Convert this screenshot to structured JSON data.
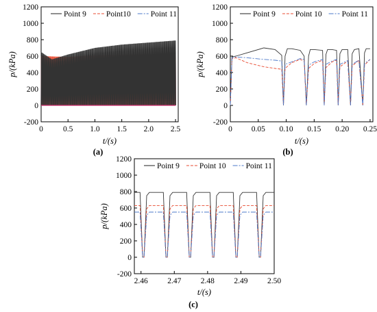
{
  "chart_data": [
    {
      "type": "line",
      "panel_label": "(a)",
      "xlabel": "t/(s)",
      "ylabel": "p/(kPa)",
      "xlim": [
        0,
        2.55
      ],
      "ylim": [
        -200,
        1200
      ],
      "xticks": [
        0,
        0.5,
        1.0,
        1.5,
        2.0,
        2.5
      ],
      "xtick_labels": [
        "0",
        "0.5",
        "1.0",
        "1.5",
        "2.0",
        "2.5"
      ],
      "yticks": [
        -200,
        0,
        200,
        400,
        600,
        800,
        1000,
        1200
      ],
      "ytick_labels": [
        "-200",
        "0",
        "200",
        "400",
        "600",
        "800",
        "1000",
        "1200"
      ],
      "legend": "top-right",
      "series": [
        {
          "name": "Point 9",
          "color": "#333333",
          "dash": "solid",
          "peak": [
            [
              0,
              650
            ],
            [
              0.2,
              560
            ],
            [
              0.5,
              620
            ],
            [
              1.0,
              700
            ],
            [
              1.5,
              740
            ],
            [
              2.0,
              765
            ],
            [
              2.5,
              790
            ]
          ],
          "low": 0
        },
        {
          "name": "Point10",
          "color": "#e8492f",
          "dash": "4,2",
          "peak": [
            [
              0,
              600
            ],
            [
              0.5,
              590
            ],
            [
              1.0,
              610
            ],
            [
              2.5,
              630
            ]
          ],
          "low": 0
        },
        {
          "name": "Point 11",
          "color": "#4a77c9",
          "dash": "7,2,2,2",
          "peak": [
            [
              0,
              560
            ],
            [
              0.5,
              540
            ],
            [
              1.0,
              550
            ],
            [
              2.5,
              555
            ]
          ],
          "low": 0
        }
      ]
    },
    {
      "type": "line",
      "panel_label": "(b)",
      "xlabel": "t/(s)",
      "ylabel": "p/(kPa)",
      "xlim": [
        0,
        0.255
      ],
      "ylim": [
        -200,
        1200
      ],
      "xticks": [
        0,
        0.05,
        0.1,
        0.15,
        0.2,
        0.25
      ],
      "xtick_labels": [
        "0",
        "0.05",
        "0.10",
        "0.15",
        "0.20",
        "0.25"
      ],
      "yticks": [
        -200,
        0,
        200,
        400,
        600,
        800,
        1000,
        1200
      ],
      "ytick_labels": [
        "-200",
        "0",
        "200",
        "400",
        "600",
        "800",
        "1000",
        "1200"
      ],
      "legend": "top-right",
      "series": [
        {
          "name": "Point 9",
          "color": "#333333",
          "dash": "solid",
          "x": [
            0,
            0.003,
            0.01,
            0.03,
            0.06,
            0.08,
            0.092,
            0.095,
            0.098,
            0.102,
            0.11,
            0.125,
            0.132,
            0.136,
            0.14,
            0.143,
            0.15,
            0.165,
            0.168,
            0.171,
            0.174,
            0.182,
            0.19,
            0.193,
            0.196,
            0.2,
            0.21,
            0.215,
            0.218,
            0.222,
            0.23,
            0.237,
            0.24,
            0.243,
            0.25
          ],
          "y": [
            0,
            590,
            600,
            640,
            700,
            680,
            610,
            0,
            600,
            690,
            690,
            670,
            600,
            0,
            600,
            680,
            680,
            670,
            0,
            620,
            680,
            680,
            670,
            0,
            630,
            680,
            680,
            0,
            630,
            680,
            690,
            0,
            640,
            690,
            690
          ]
        },
        {
          "name": "Point 10",
          "color": "#e8492f",
          "dash": "4,2",
          "x": [
            0,
            0.003,
            0.01,
            0.03,
            0.06,
            0.08,
            0.092,
            0.095,
            0.098,
            0.11,
            0.125,
            0.132,
            0.136,
            0.14,
            0.15,
            0.165,
            0.168,
            0.171,
            0.182,
            0.19,
            0.193,
            0.196,
            0.21,
            0.215,
            0.218,
            0.23,
            0.237,
            0.24,
            0.25
          ],
          "y": [
            0,
            570,
            580,
            520,
            470,
            450,
            440,
            0,
            450,
            520,
            560,
            540,
            0,
            450,
            510,
            550,
            0,
            460,
            530,
            550,
            0,
            470,
            540,
            0,
            480,
            550,
            0,
            490,
            560
          ]
        },
        {
          "name": "Point 11",
          "color": "#4a77c9",
          "dash": "7,2,2,2",
          "x": [
            0,
            0.003,
            0.01,
            0.03,
            0.06,
            0.08,
            0.092,
            0.095,
            0.098,
            0.11,
            0.125,
            0.132,
            0.136,
            0.14,
            0.15,
            0.165,
            0.168,
            0.171,
            0.182,
            0.19,
            0.193,
            0.196,
            0.21,
            0.215,
            0.218,
            0.23,
            0.237,
            0.24,
            0.25
          ],
          "y": [
            0,
            580,
            590,
            580,
            560,
            550,
            540,
            0,
            500,
            530,
            570,
            560,
            0,
            490,
            530,
            560,
            0,
            500,
            540,
            560,
            0,
            500,
            545,
            0,
            500,
            550,
            0,
            510,
            560
          ]
        }
      ]
    },
    {
      "type": "line",
      "panel_label": "(c)",
      "xlabel": "t/(s)",
      "ylabel": "p/(kPa)",
      "xlim": [
        2.458,
        2.5
      ],
      "ylim": [
        -200,
        1200
      ],
      "xticks": [
        2.46,
        2.47,
        2.48,
        2.49,
        2.5
      ],
      "xtick_labels": [
        "2.46",
        "2.47",
        "2.48",
        "2.49",
        "2.50"
      ],
      "yticks": [
        -200,
        0,
        200,
        400,
        600,
        800,
        1000,
        1200
      ],
      "ytick_labels": [
        "-200",
        "0",
        "200",
        "400",
        "600",
        "800",
        "1000",
        "1200"
      ],
      "legend": "top-right",
      "period": 0.007,
      "drops": [
        2.4605,
        2.4675,
        2.4745,
        2.4815,
        2.4885,
        2.4955
      ],
      "series": [
        {
          "name": "Point 9",
          "color": "#333333",
          "dash": "solid",
          "plateau": 790
        },
        {
          "name": "Point 10",
          "color": "#e8492f",
          "dash": "4,2",
          "plateau": 630
        },
        {
          "name": "Point 11",
          "color": "#4a77c9",
          "dash": "7,2,2,2",
          "plateau": 550
        }
      ]
    }
  ]
}
